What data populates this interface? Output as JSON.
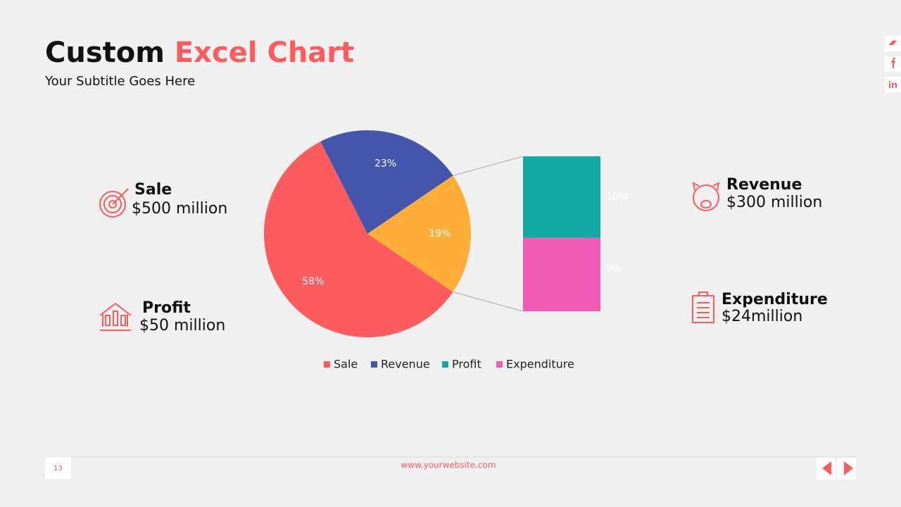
{
  "title": {
    "lead": "Custom",
    "accent": "Excel Chart"
  },
  "subtitle": "Your Subtitle Goes Here",
  "chart_data": {
    "type": "bar-of-pie",
    "pie": {
      "values": [
        58,
        23,
        19
      ],
      "value_labels": [
        "58%",
        "23%",
        "19%"
      ],
      "colors": [
        "#fd5c5f",
        "#4356ac",
        "#ffae3a"
      ]
    },
    "bar": {
      "values": [
        10,
        9
      ],
      "value_labels": [
        "10%",
        "9%"
      ],
      "colors": [
        "#13a9a3",
        "#f15bb5"
      ]
    },
    "legend": [
      {
        "name": "Sale",
        "color": "#fd5c5f"
      },
      {
        "name": "Revenue",
        "color": "#4356ac"
      },
      {
        "name": "Profit",
        "color": "#13a9a3"
      },
      {
        "name": "Expenditure",
        "color": "#f15bb5"
      }
    ]
  },
  "stats": [
    {
      "title": "Sale",
      "value": "$500 million"
    },
    {
      "title": "Profit",
      "value": "$50 million"
    },
    {
      "title": "Revenue",
      "value": "$300 million"
    },
    {
      "title": "Expenditure",
      "value": "$24million"
    }
  ],
  "footer": {
    "page": "13",
    "website": "www.yourwebsite.com"
  }
}
